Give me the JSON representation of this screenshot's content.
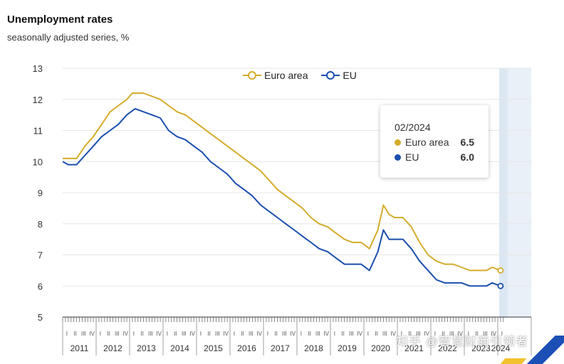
{
  "title": "Unemployment rates",
  "subtitle": "seasonally adjusted series, %",
  "colors": {
    "euro_area": "#d4ac2b",
    "eu": "#1a4fae",
    "grid": "#e6e6e6",
    "highlight": "#e9f0f8"
  },
  "tooltip": {
    "date": "02/2024",
    "rows": [
      {
        "label": "Euro area",
        "value": "6.5"
      },
      {
        "label": "EU",
        "value": "6.0"
      }
    ]
  },
  "watermark": "知乎 @智慧财商引领者",
  "chart_data": {
    "type": "line",
    "yticks": [
      "13",
      "12",
      "11",
      "10",
      "9",
      "8",
      "7",
      "6",
      "5"
    ],
    "ylim": [
      5,
      13
    ],
    "x_start": "2011-01",
    "x_end": "2024-02",
    "years": [
      "2011",
      "2012",
      "2013",
      "2014",
      "2015",
      "2016",
      "2017",
      "2018",
      "2019",
      "2020",
      "2021",
      "2022",
      "2023",
      "2024"
    ],
    "quarter_labels": [
      "I",
      "II",
      "III",
      "IV"
    ],
    "highlight_period": "2024-02",
    "series": [
      {
        "name": "Euro area",
        "points": [
          [
            "2011-01",
            10.1
          ],
          [
            "2011-03",
            10.1
          ],
          [
            "2011-06",
            10.1
          ],
          [
            "2011-09",
            10.5
          ],
          [
            "2011-12",
            10.8
          ],
          [
            "2012-03",
            11.2
          ],
          [
            "2012-06",
            11.6
          ],
          [
            "2012-09",
            11.8
          ],
          [
            "2012-12",
            12.0
          ],
          [
            "2013-02",
            12.2
          ],
          [
            "2013-06",
            12.2
          ],
          [
            "2013-09",
            12.1
          ],
          [
            "2013-12",
            12.0
          ],
          [
            "2014-03",
            11.8
          ],
          [
            "2014-06",
            11.6
          ],
          [
            "2014-09",
            11.5
          ],
          [
            "2014-12",
            11.3
          ],
          [
            "2015-03",
            11.1
          ],
          [
            "2015-06",
            10.9
          ],
          [
            "2015-09",
            10.7
          ],
          [
            "2015-12",
            10.5
          ],
          [
            "2016-03",
            10.3
          ],
          [
            "2016-06",
            10.1
          ],
          [
            "2016-09",
            9.9
          ],
          [
            "2016-12",
            9.7
          ],
          [
            "2017-03",
            9.4
          ],
          [
            "2017-06",
            9.1
          ],
          [
            "2017-09",
            8.9
          ],
          [
            "2017-12",
            8.7
          ],
          [
            "2018-03",
            8.5
          ],
          [
            "2018-06",
            8.2
          ],
          [
            "2018-09",
            8.0
          ],
          [
            "2018-12",
            7.9
          ],
          [
            "2019-03",
            7.7
          ],
          [
            "2019-06",
            7.5
          ],
          [
            "2019-09",
            7.4
          ],
          [
            "2019-12",
            7.4
          ],
          [
            "2020-03",
            7.2
          ],
          [
            "2020-06",
            7.8
          ],
          [
            "2020-08",
            8.6
          ],
          [
            "2020-10",
            8.3
          ],
          [
            "2020-12",
            8.2
          ],
          [
            "2021-03",
            8.2
          ],
          [
            "2021-06",
            7.9
          ],
          [
            "2021-09",
            7.4
          ],
          [
            "2021-12",
            7.0
          ],
          [
            "2022-03",
            6.8
          ],
          [
            "2022-06",
            6.7
          ],
          [
            "2022-09",
            6.7
          ],
          [
            "2022-12",
            6.6
          ],
          [
            "2023-03",
            6.5
          ],
          [
            "2023-06",
            6.5
          ],
          [
            "2023-09",
            6.5
          ],
          [
            "2023-11",
            6.6
          ],
          [
            "2024-02",
            6.5
          ]
        ]
      },
      {
        "name": "EU",
        "points": [
          [
            "2011-01",
            10.0
          ],
          [
            "2011-03",
            9.9
          ],
          [
            "2011-06",
            9.9
          ],
          [
            "2011-09",
            10.2
          ],
          [
            "2011-12",
            10.5
          ],
          [
            "2012-03",
            10.8
          ],
          [
            "2012-06",
            11.0
          ],
          [
            "2012-09",
            11.2
          ],
          [
            "2012-12",
            11.5
          ],
          [
            "2013-03",
            11.7
          ],
          [
            "2013-06",
            11.6
          ],
          [
            "2013-09",
            11.5
          ],
          [
            "2013-12",
            11.4
          ],
          [
            "2014-03",
            11.0
          ],
          [
            "2014-06",
            10.8
          ],
          [
            "2014-09",
            10.7
          ],
          [
            "2014-12",
            10.5
          ],
          [
            "2015-03",
            10.3
          ],
          [
            "2015-06",
            10.0
          ],
          [
            "2015-09",
            9.8
          ],
          [
            "2015-12",
            9.6
          ],
          [
            "2016-03",
            9.3
          ],
          [
            "2016-06",
            9.1
          ],
          [
            "2016-09",
            8.9
          ],
          [
            "2016-12",
            8.6
          ],
          [
            "2017-03",
            8.4
          ],
          [
            "2017-06",
            8.2
          ],
          [
            "2017-09",
            8.0
          ],
          [
            "2017-12",
            7.8
          ],
          [
            "2018-03",
            7.6
          ],
          [
            "2018-06",
            7.4
          ],
          [
            "2018-09",
            7.2
          ],
          [
            "2018-12",
            7.1
          ],
          [
            "2019-03",
            6.9
          ],
          [
            "2019-06",
            6.7
          ],
          [
            "2019-09",
            6.7
          ],
          [
            "2019-12",
            6.7
          ],
          [
            "2020-03",
            6.5
          ],
          [
            "2020-06",
            7.1
          ],
          [
            "2020-08",
            7.8
          ],
          [
            "2020-10",
            7.5
          ],
          [
            "2020-12",
            7.5
          ],
          [
            "2021-03",
            7.5
          ],
          [
            "2021-06",
            7.2
          ],
          [
            "2021-09",
            6.8
          ],
          [
            "2021-12",
            6.5
          ],
          [
            "2022-03",
            6.2
          ],
          [
            "2022-06",
            6.1
          ],
          [
            "2022-09",
            6.1
          ],
          [
            "2022-12",
            6.1
          ],
          [
            "2023-03",
            6.0
          ],
          [
            "2023-06",
            6.0
          ],
          [
            "2023-09",
            6.0
          ],
          [
            "2023-11",
            6.1
          ],
          [
            "2024-02",
            6.0
          ]
        ]
      }
    ]
  }
}
